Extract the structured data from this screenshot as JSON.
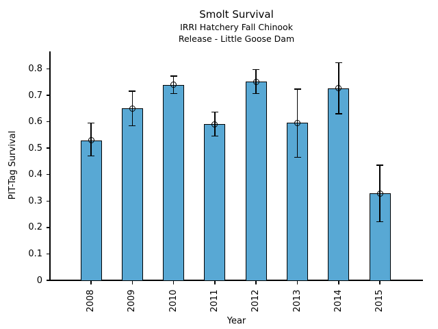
{
  "chart_data": {
    "type": "bar",
    "title": "Smolt Survival",
    "subtitle1": "IRRI Hatchery Fall Chinook",
    "subtitle2": "Release - Little Goose Dam",
    "xlabel": "Year",
    "ylabel": "PIT-Tag Survival",
    "categories": [
      "2008",
      "2009",
      "2010",
      "2011",
      "2012",
      "2013",
      "2014",
      "2015"
    ],
    "values": [
      0.53,
      0.65,
      0.739,
      0.59,
      0.751,
      0.596,
      0.727,
      0.328
    ],
    "error_low": [
      0.47,
      0.585,
      0.707,
      0.546,
      0.707,
      0.465,
      0.63,
      0.222
    ],
    "error_high": [
      0.595,
      0.716,
      0.773,
      0.637,
      0.797,
      0.723,
      0.823,
      0.436
    ],
    "yticks": [
      0,
      0.1,
      0.2,
      0.3,
      0.4,
      0.5,
      0.6,
      0.7,
      0.8
    ],
    "ytick_labels": [
      "0",
      "0.1",
      "0.2",
      "0.3",
      "0.4",
      "0.5",
      "0.6",
      "0.7",
      "0.8"
    ],
    "ylim": [
      0,
      0.866
    ],
    "grid": false,
    "legend": null,
    "marker": "open-circle",
    "bar_color": "#58A8D4",
    "bar_edge_color": "#000000",
    "error_bar_color": "#000000"
  }
}
